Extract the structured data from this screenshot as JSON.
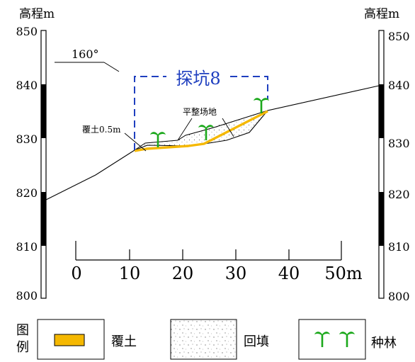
{
  "axis": {
    "left_title": "高程m",
    "right_title": "高程m",
    "elevation_ticks": [
      "850",
      "840",
      "830",
      "820",
      "810",
      "800"
    ]
  },
  "bearing": "160°",
  "pit_label": "探坑8",
  "annotations": {
    "cover_soil": "覆土0.5m",
    "leveled_ground": "平整场地"
  },
  "scale_bar": {
    "ticks": [
      "0",
      "10",
      "20",
      "30",
      "40",
      "50m"
    ]
  },
  "legend": {
    "title": "图例",
    "items": [
      {
        "label": "覆土",
        "icon": "cover-soil-swatch"
      },
      {
        "label": "回填",
        "icon": "backfill-swatch"
      },
      {
        "label": "种林",
        "icon": "seedling-icon"
      }
    ]
  },
  "colors": {
    "cover_soil": "#F5B800",
    "pit_outline": "#1F3FBF",
    "seedling": "#1BA81B",
    "column_fill": "#000000"
  }
}
